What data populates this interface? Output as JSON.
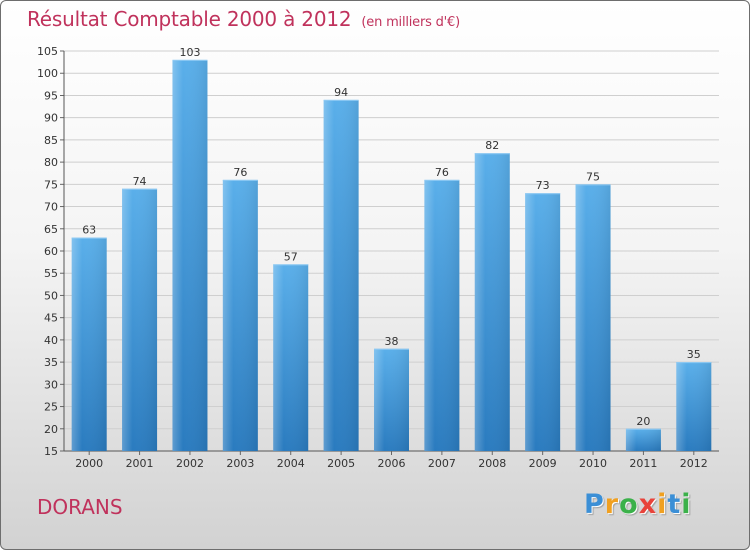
{
  "header": {
    "title": "Résultat Comptable 2000 à 2012",
    "unit": "(en milliers d'€)"
  },
  "footer": {
    "commune": "DORANS",
    "logo_letters": [
      "P",
      "r",
      "o",
      "x",
      "i",
      "t",
      "i"
    ],
    "logo_colors": [
      "#3b8fd6",
      "#f0a020",
      "#3bb14a",
      "#e8433a",
      "#f0a020",
      "#3b8fd6",
      "#3bb14a"
    ]
  },
  "colors": {
    "bar": "#3d97dc",
    "bar_light": "#5aafea",
    "bar_dark": "#2a7bbf",
    "title": "#c0325c"
  },
  "chart_data": {
    "type": "bar",
    "title": "Résultat Comptable 2000 à 2012",
    "ylabel": "en milliers d'€",
    "xlabel": "",
    "categories": [
      "2000",
      "2001",
      "2002",
      "2003",
      "2004",
      "2005",
      "2006",
      "2007",
      "2008",
      "2009",
      "2010",
      "2011",
      "2012"
    ],
    "values": [
      63,
      74,
      103,
      76,
      57,
      94,
      38,
      76,
      82,
      73,
      75,
      20,
      35
    ],
    "ylim": [
      15,
      105
    ],
    "yticks": [
      15,
      20,
      25,
      30,
      35,
      40,
      45,
      50,
      55,
      60,
      65,
      70,
      75,
      80,
      85,
      90,
      95,
      100,
      105
    ],
    "grid": true
  }
}
